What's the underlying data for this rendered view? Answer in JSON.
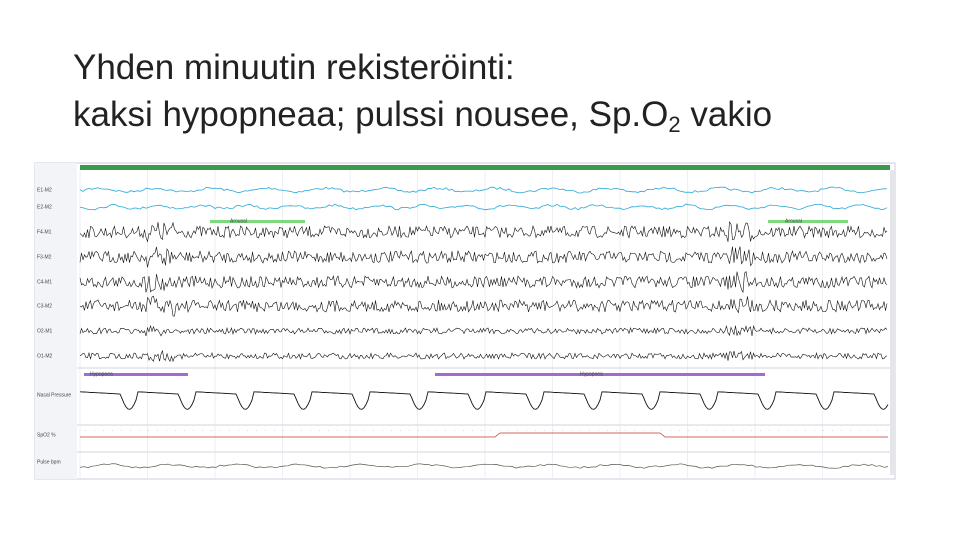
{
  "slide": {
    "title": {
      "line1": "Yhden minuutin rekisteröinti:",
      "line2": [
        "kaksi hypopneaa; pulssi nousee, Sp.O",
        "2",
        " vakio"
      ]
    },
    "recording": {
      "channels": [
        "E1-M2",
        "E2-M2",
        "F4-M1",
        "F3-M2",
        "C4-M1",
        "C3-M2",
        "O2-M1",
        "O1-M2",
        "Nasal Pressure",
        "SpO2 %",
        "Pulse bpm"
      ],
      "annotations": [
        "Arousal",
        "Arousal",
        "Hypopnea",
        "Hypopnea"
      ]
    }
  }
}
